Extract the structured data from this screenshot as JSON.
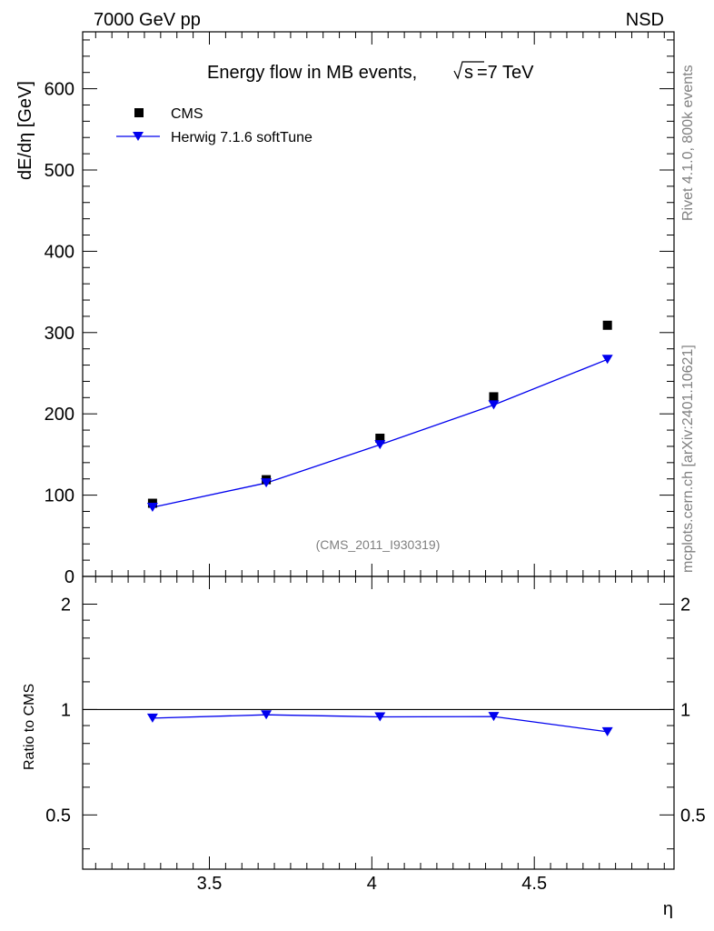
{
  "header": {
    "left": "7000 GeV pp",
    "right": "NSD"
  },
  "side": {
    "rivet": "Rivet 4.1.0,  800k events",
    "mcplots": "mcplots.cern.ch [arXiv:2401.10621]"
  },
  "analysis_id": "(CMS_2011_I930319)",
  "chart_data": [
    {
      "type": "scatter",
      "title": "Energy flow in MB events,",
      "title_sqrt": "s",
      "title_tail": "=7 TeV",
      "xlabel": "η",
      "ylabel": "dE/dη [GeV]",
      "xlim": [
        3.11,
        4.93
      ],
      "ylim": [
        0,
        670
      ],
      "yticks": [
        0,
        100,
        200,
        300,
        400,
        500,
        600
      ],
      "ytick_labels": [
        "0",
        "100",
        "200",
        "300",
        "400",
        "500",
        "600"
      ],
      "legend_position": "top-left",
      "series": [
        {
          "name": "CMS",
          "marker": "square",
          "color": "#000000",
          "x": [
            3.325,
            3.675,
            4.025,
            4.375,
            4.725
          ],
          "y": [
            90,
            119,
            170,
            221,
            309
          ]
        },
        {
          "name": "Herwig 7.1.6 softTune",
          "marker": "triangle-down",
          "color": "#0000ee",
          "line": true,
          "x": [
            3.325,
            3.675,
            4.025,
            4.375,
            4.725
          ],
          "y": [
            85,
            115,
            162,
            211,
            267
          ]
        }
      ]
    },
    {
      "type": "line",
      "ylabel": "Ratio to CMS",
      "xlabel": "η",
      "xlim": [
        3.11,
        4.93
      ],
      "ylim": [
        0.35,
        2.4
      ],
      "yscale": "log",
      "yticks": [
        0.5,
        1,
        2
      ],
      "ytick_labels": [
        "0.5",
        "1",
        "2"
      ],
      "xticks": [
        3.5,
        4,
        4.5
      ],
      "xtick_labels": [
        "3.5",
        "4",
        "4.5"
      ],
      "reference_line": 1,
      "series": [
        {
          "name": "Herwig 7.1.6 softTune",
          "marker": "triangle-down",
          "color": "#0000ee",
          "x": [
            3.325,
            3.675,
            4.025,
            4.375,
            4.725
          ],
          "y": [
            0.945,
            0.966,
            0.953,
            0.955,
            0.864
          ]
        }
      ]
    }
  ]
}
